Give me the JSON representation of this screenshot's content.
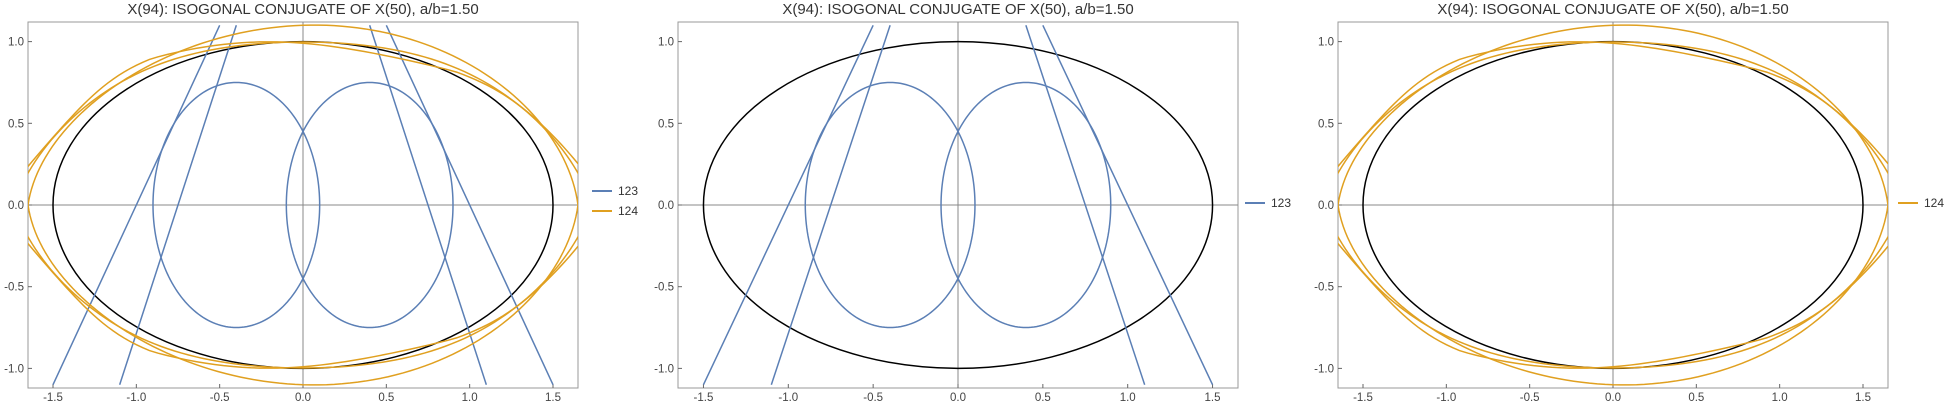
{
  "colors": {
    "series_123": "#5b7fb5",
    "series_124": "#e0a020",
    "ellipse": "#000000",
    "axes": "#888888"
  },
  "chart_data": [
    {
      "type": "line",
      "title": "X(94): ISOGONAL CONJUGATE OF X(50), a/b=1.50",
      "xlim": [
        -1.65,
        1.65
      ],
      "ylim": [
        -1.12,
        1.12
      ],
      "xticks": [
        "-1.5",
        "-1.0",
        "-0.5",
        "0.0",
        "0.5",
        "1.0",
        "1.5"
      ],
      "yticks": [
        "-1.0",
        "-0.5",
        "0.0",
        "0.5",
        "1.0"
      ],
      "legend": [
        "123",
        "124"
      ],
      "legend_position": "right",
      "ellipse": {
        "a": 1.5,
        "b": 1.0
      },
      "series": [
        {
          "name": "123",
          "color_key": "series_123",
          "curves": "bicircular"
        },
        {
          "name": "124",
          "color_key": "series_124",
          "curves": "ovals"
        }
      ]
    },
    {
      "type": "line",
      "title": "X(94): ISOGONAL CONJUGATE OF X(50), a/b=1.50",
      "xlim": [
        -1.65,
        1.65
      ],
      "ylim": [
        -1.12,
        1.12
      ],
      "xticks": [
        "-1.5",
        "-1.0",
        "-0.5",
        "0.0",
        "0.5",
        "1.0",
        "1.5"
      ],
      "yticks": [
        "-1.0",
        "-0.5",
        "0.0",
        "0.5",
        "1.0"
      ],
      "legend": [
        "123"
      ],
      "legend_position": "right",
      "ellipse": {
        "a": 1.5,
        "b": 1.0
      },
      "series": [
        {
          "name": "123",
          "color_key": "series_123",
          "curves": "bicircular"
        }
      ]
    },
    {
      "type": "line",
      "title": "X(94): ISOGONAL CONJUGATE OF X(50), a/b=1.50",
      "xlim": [
        -1.65,
        1.65
      ],
      "ylim": [
        -1.12,
        1.12
      ],
      "xticks": [
        "-1.5",
        "-1.0",
        "-0.5",
        "0.0",
        "0.5",
        "1.0",
        "1.5"
      ],
      "yticks": [
        "-1.0",
        "-0.5",
        "0.0",
        "0.5",
        "1.0"
      ],
      "legend": [
        "124"
      ],
      "legend_position": "right",
      "ellipse": {
        "a": 1.5,
        "b": 1.0
      },
      "series": [
        {
          "name": "124",
          "color_key": "series_124",
          "curves": "ovals"
        }
      ]
    }
  ]
}
